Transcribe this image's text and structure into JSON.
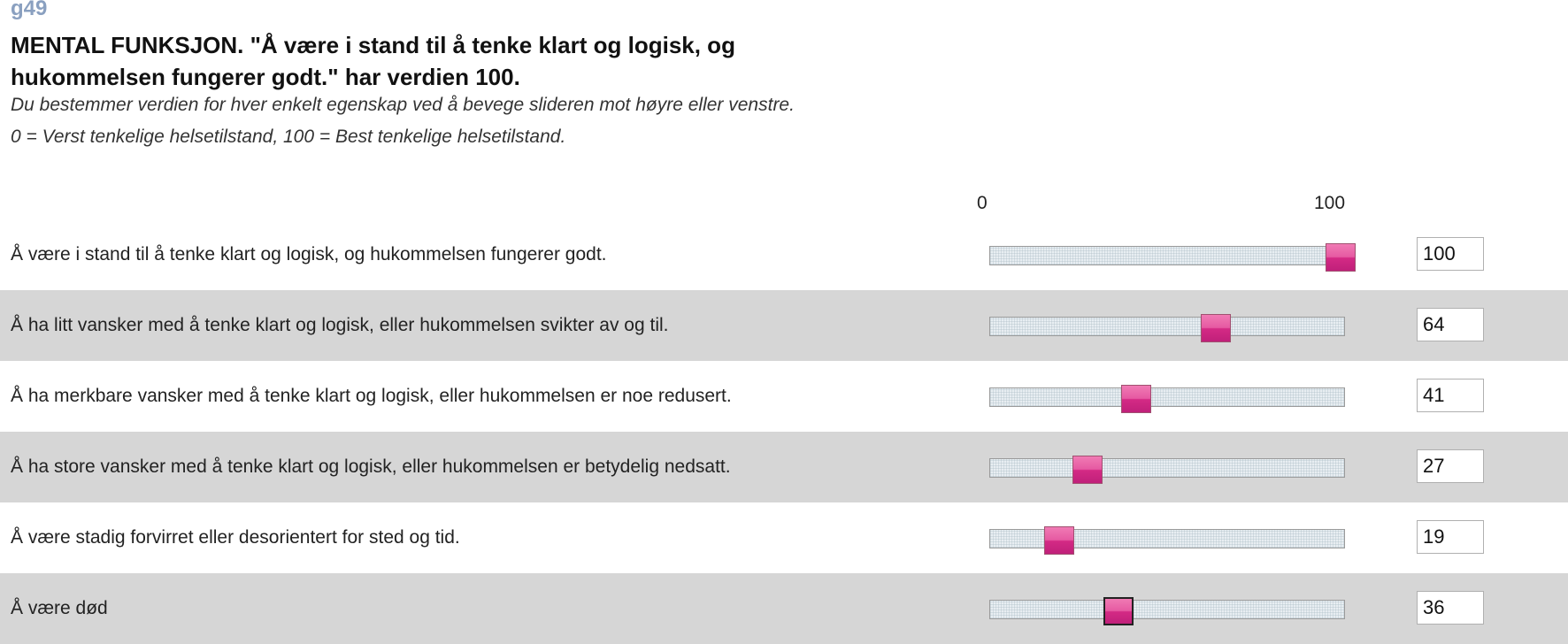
{
  "question": {
    "id": "g49",
    "title": "MENTAL FUNKSJON. \"Å være i stand til å tenke klart og logisk, og hukommelsen fungerer godt.\" har verdien 100.",
    "instruction": "Du bestemmer verdien for hver enkelt egenskap ved å bevege slideren mot høyre eller venstre.",
    "scale_note": "0 = Verst tenkelige helsetilstand, 100 = Best tenkelige helsetilstand."
  },
  "scale": {
    "min_label": "0",
    "max_label": "100",
    "min": 0,
    "max": 100
  },
  "colors": {
    "thumb": "#e65aa2",
    "alt_row": "#d6d6d6",
    "id_text": "#8aa0c0"
  },
  "rows": [
    {
      "label": "Å være i stand til å tenke klart og logisk, og hukommelsen fungerer godt.",
      "value": "100",
      "level": 100
    },
    {
      "label": "Å ha litt vansker med å tenke klart og logisk, eller hukommelsen svikter av og til.",
      "value": "64",
      "level": 64
    },
    {
      "label": "Å ha merkbare vansker med å tenke klart og logisk, eller hukommelsen er noe redusert.",
      "value": "41",
      "level": 41
    },
    {
      "label": "Å ha store vansker med å tenke klart og logisk, eller hukommelsen er betydelig nedsatt.",
      "value": "27",
      "level": 27
    },
    {
      "label": "Å være stadig forvirret eller desorientert for sted og tid.",
      "value": "19",
      "level": 19
    },
    {
      "label": "Å være død",
      "value": "36",
      "level": 36
    }
  ]
}
